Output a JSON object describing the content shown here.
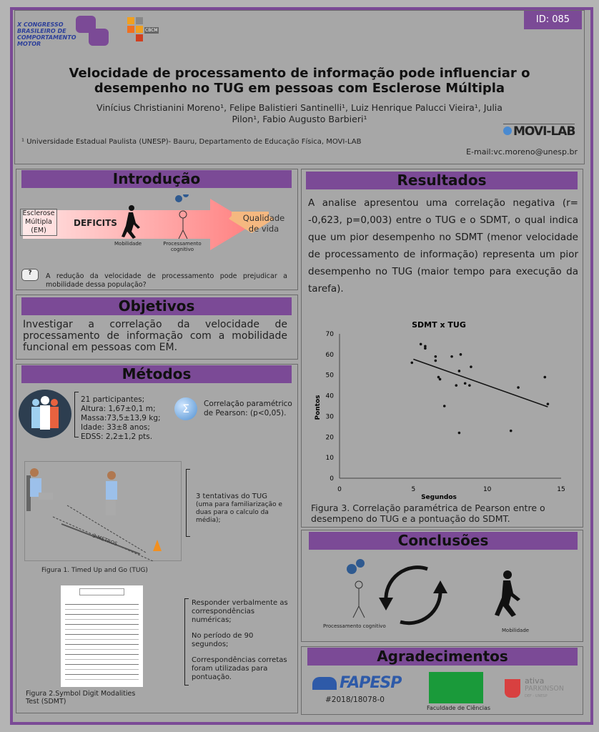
{
  "header": {
    "congress_logo": "X CONGRESSO BRASILEIRO DE COMPORTAMENTO MOTOR",
    "cbcm_logo": "CBCM",
    "id_badge": "ID: 085",
    "title_line1": "Velocidade de processamento de informação pode influenciar o",
    "title_line2": "desempenho no TUG em pessoas com Esclerose Múltipla",
    "authors_line1": "Vinícius Christianini Moreno¹, Felipe Balistieri Santinelli¹, Luiz Henrique Palucci Vieira¹, Julia",
    "authors_line2": "Pilon¹, Fabio Augusto Barbieri¹",
    "affiliation": "¹ Universidade Estadual Paulista (UNESP)- Bauru, Departamento de Educação Física, MOVI-LAB",
    "lab_logo": "MOVI-LAB",
    "email": "E-mail:vc.moreno@unesp.br"
  },
  "intro": {
    "title": "Introdução",
    "box": "Esclerose Múltipla (EM)",
    "deficits": "DEFICITS",
    "mobility": "Mobilidade",
    "processing": "Processamento cognitivo",
    "quality": "Qualidade de vida",
    "question_icon": "?",
    "question": "A redução da velocidade de processamento pode prejudicar a mobilidade dessa população?"
  },
  "objectives": {
    "title": "Objetivos",
    "text": "Investigar a correlação da velocidade de processamento de informação com a mobilidade funcional em pessoas com EM."
  },
  "methods": {
    "title": "Métodos",
    "participants": [
      "21 participantes;",
      "Altura: 1,67±0,1 m;",
      "Massa:73,5±13,9 kg;",
      "Idade: 33±8 anos;",
      "EDSS: 2,2±1,2 pts."
    ],
    "stats": "Correlação paramétrico de Pearson: (p<0,05).",
    "tug_distance": "3 METROS",
    "tug_text": "3 tentativas do TUG",
    "tug_detail": "(uma para familiarização e duas para o calculo da média);",
    "fig1": "Figura 1. Timed Up and Go (TUG)",
    "sdmt_items": [
      "Responder verbalmente as correspondências numéricas;",
      "No período de 90 segundos;",
      "Correspondências corretas foram utilizadas para pontuação."
    ],
    "fig2": "Figura 2.Symbol  Digit  Modalities  Test  (SDMT)"
  },
  "results": {
    "title": "Resultados",
    "text": "A analise apresentou uma correlação negativa (r= -0,623, p=0,003) entre o TUG e o SDMT, o qual indica que um pior desempenho no SDMT (menor velocidade de processamento de informação) representa um pior desempenho no TUG (maior tempo para execução da tarefa).",
    "caption": "Figura 3. Correlação paramétrica de Pearson entre o desempeno do TUG e a pontuação do SDMT."
  },
  "chart_data": {
    "type": "scatter",
    "title": "SDMT x TUG",
    "xlabel": "Segundos",
    "ylabel": "Pontos",
    "xlim": [
      0,
      15
    ],
    "ylim": [
      0,
      70
    ],
    "xticks": [
      0,
      5,
      10,
      15
    ],
    "yticks": [
      0,
      10,
      20,
      30,
      40,
      50,
      60,
      70
    ],
    "grid": false,
    "points": [
      [
        4.9,
        56
      ],
      [
        5.5,
        65
      ],
      [
        5.8,
        64
      ],
      [
        5.8,
        63
      ],
      [
        6.5,
        59
      ],
      [
        6.5,
        57
      ],
      [
        6.7,
        49
      ],
      [
        6.8,
        48
      ],
      [
        7.1,
        35
      ],
      [
        7.6,
        59
      ],
      [
        8.2,
        60
      ],
      [
        8.1,
        52
      ],
      [
        7.9,
        45
      ],
      [
        8.5,
        46
      ],
      [
        8.9,
        54
      ],
      [
        8.8,
        45
      ],
      [
        8.1,
        22
      ],
      [
        11.6,
        23
      ],
      [
        12.1,
        44
      ],
      [
        13.9,
        49
      ],
      [
        14.1,
        36
      ]
    ],
    "trendline": [
      [
        5.0,
        57.7
      ],
      [
        14.1,
        34.6
      ]
    ],
    "colors": {
      "points": "#111111",
      "trendline": "#111111"
    }
  },
  "conclusions": {
    "title": "Conclusões",
    "processing": "Processamento cognitivo",
    "mobility": "Mobilidade"
  },
  "acknowledgments": {
    "title": "Agradecimentos",
    "fapesp": "FAPESP",
    "grant": "#2018/18078-0",
    "fc": "Faculdade de Ciências",
    "ativa_1": "ativa",
    "ativa_2": "PARKINSON",
    "ativa_3": "DEF - UNESP"
  },
  "colors": {
    "accent": "#7b4a96",
    "background": "#a7a7a7"
  }
}
